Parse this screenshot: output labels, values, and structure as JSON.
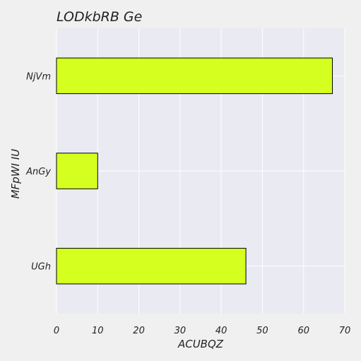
{
  "chart_data": {
    "type": "bar",
    "orientation": "horizontal",
    "title": "LODkbRB Ge",
    "xlabel": "ACUBQZ",
    "ylabel": "MFpWI IU",
    "categories": [
      "UGh",
      "AnGy",
      "NjVm"
    ],
    "values": [
      46,
      10,
      67
    ],
    "xlim": [
      0,
      70
    ],
    "xticks": [
      0,
      10,
      20,
      30,
      40,
      50,
      60,
      70
    ],
    "grid": true,
    "bar_color": "#d4ff1f",
    "bar_edge_color": "#000000",
    "plot_background": "#eaeaf2",
    "page_background": "#f0f0f0"
  }
}
